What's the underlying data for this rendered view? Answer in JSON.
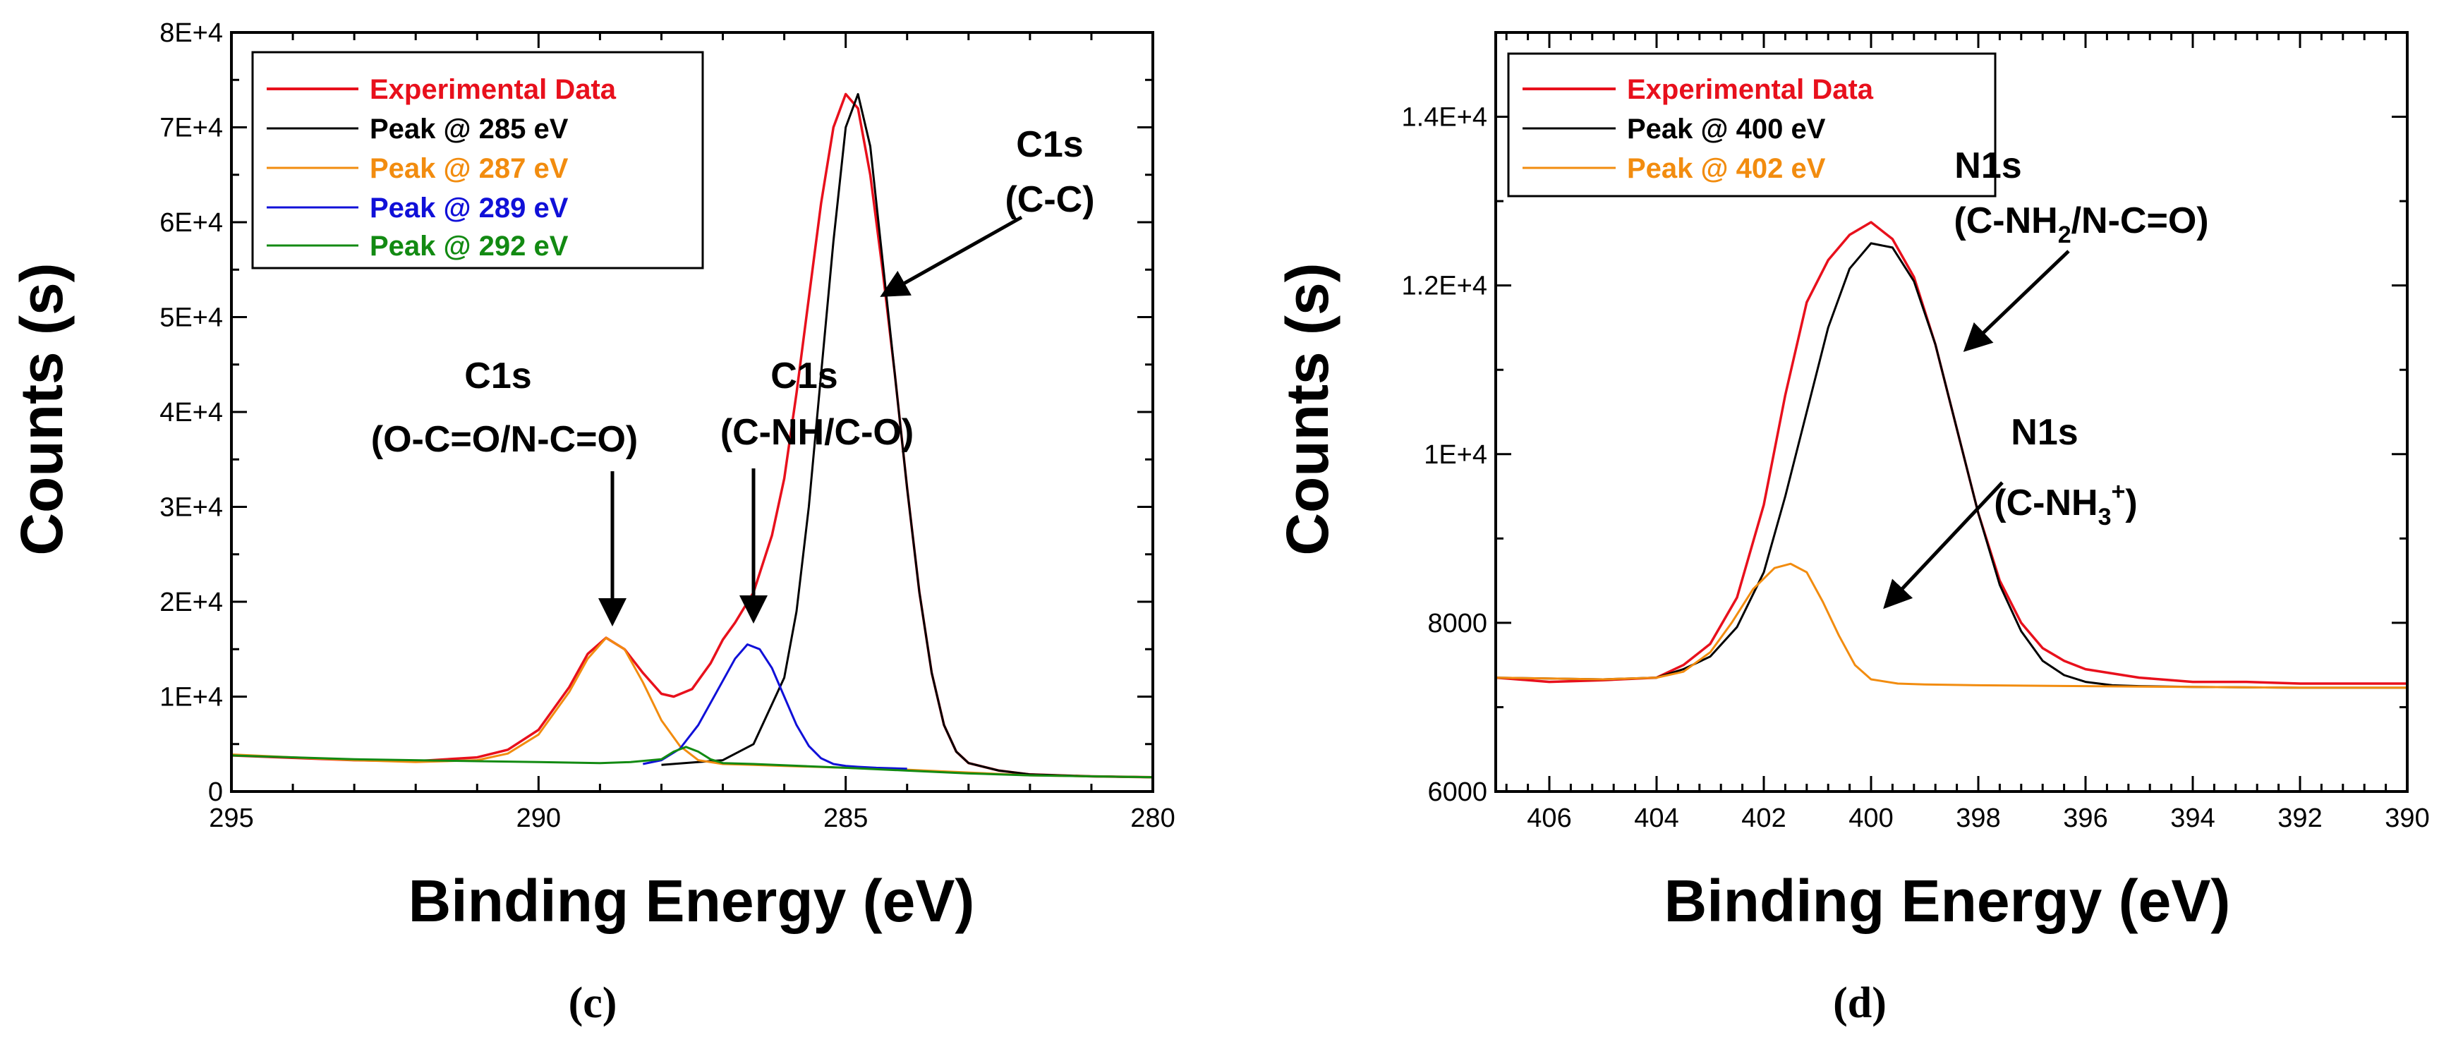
{
  "chart_data": [
    {
      "type": "line",
      "panel_label": "(c)",
      "xlabel": "Binding Energy (eV)",
      "ylabel": "Counts (s)",
      "xlim": [
        295,
        280
      ],
      "ylim": [
        0,
        80000
      ],
      "x_reversed": true,
      "xticks": [
        295,
        290,
        285,
        280
      ],
      "xtick_labels": [
        "295",
        "290",
        "285",
        "280"
      ],
      "yticks": [
        0,
        10000,
        20000,
        30000,
        40000,
        50000,
        60000,
        70000,
        80000
      ],
      "ytick_labels": [
        "0",
        "1E+4",
        "2E+4",
        "3E+4",
        "4E+4",
        "5E+4",
        "6E+4",
        "7E+4",
        "8E+4"
      ],
      "legend": {
        "position": "top-left",
        "entries": [
          {
            "label": "Experimental Data",
            "color": "#e8101c"
          },
          {
            "label": "Peak @ 285 eV",
            "color": "#000000"
          },
          {
            "label": "Peak @ 287 eV",
            "color": "#f28c0f"
          },
          {
            "label": "Peak @ 289 eV",
            "color": "#1010d8"
          },
          {
            "label": "Peak @ 292 eV",
            "color": "#128a12"
          }
        ]
      },
      "series": [
        {
          "name": "Experimental Data",
          "color": "#e8101c",
          "x": [
            295,
            293,
            292,
            291,
            290.5,
            290,
            289.5,
            289.2,
            288.9,
            288.6,
            288.3,
            288.0,
            287.8,
            287.5,
            287.2,
            287.0,
            286.8,
            286.5,
            286.2,
            286.0,
            285.8,
            285.6,
            285.4,
            285.2,
            285.0,
            284.8,
            284.6,
            284.4,
            284.2,
            284.0,
            283.8,
            283.6,
            283.4,
            283.2,
            283.0,
            282.5,
            282.0,
            281.0,
            280.0
          ],
          "y": [
            3800,
            3300,
            3200,
            3600,
            4400,
            6500,
            11000,
            14500,
            16200,
            15000,
            12500,
            10300,
            10000,
            10800,
            13500,
            16000,
            17800,
            21000,
            27000,
            33000,
            42000,
            52000,
            62000,
            70000,
            73500,
            72000,
            65000,
            55000,
            44000,
            32000,
            21000,
            12500,
            7000,
            4200,
            3000,
            2200,
            1800,
            1600,
            1500
          ]
        },
        {
          "name": "Peak @ 285 eV",
          "color": "#000000",
          "x": [
            288.0,
            287.0,
            286.5,
            286.0,
            285.8,
            285.6,
            285.4,
            285.2,
            285.0,
            284.8,
            284.6,
            284.4,
            284.2,
            284.0,
            283.8,
            283.6,
            283.4,
            283.2,
            283.0,
            282.5,
            282.0,
            281.0,
            280.0
          ],
          "y": [
            2800,
            3300,
            5000,
            12000,
            19000,
            30000,
            44000,
            58000,
            70000,
            73500,
            68000,
            56000,
            44000,
            32000,
            21000,
            12500,
            7000,
            4200,
            3000,
            2200,
            1800,
            1600,
            1500
          ]
        },
        {
          "name": "Peak @ 287 eV",
          "color": "#f28c0f",
          "x": [
            295,
            293,
            292,
            291,
            290.5,
            290,
            289.5,
            289.2,
            288.9,
            288.6,
            288.3,
            288.0,
            287.7,
            287.4,
            287.0,
            286.5,
            286.0,
            285.0,
            284.0,
            283.0,
            282.0,
            281.0,
            280.0
          ],
          "y": [
            3900,
            3300,
            3100,
            3300,
            4000,
            6000,
            10500,
            14000,
            16200,
            15000,
            11500,
            7500,
            4800,
            3300,
            2900,
            2800,
            2700,
            2500,
            2300,
            2000,
            1700,
            1600,
            1500
          ]
        },
        {
          "name": "Peak @ 289 eV",
          "color": "#1010d8",
          "x": [
            288.3,
            288.0,
            287.7,
            287.4,
            287.1,
            286.8,
            286.6,
            286.4,
            286.2,
            286.0,
            285.8,
            285.6,
            285.4,
            285.2,
            285.0,
            284.8,
            284.5,
            284.0
          ],
          "y": [
            2900,
            3300,
            4500,
            7000,
            10500,
            14000,
            15500,
            15000,
            13000,
            10000,
            7000,
            4800,
            3500,
            2900,
            2700,
            2600,
            2500,
            2400
          ]
        },
        {
          "name": "Peak @ 292 eV",
          "color": "#128a12",
          "x": [
            295,
            293,
            291,
            290,
            289,
            288.5,
            288.0,
            287.8,
            287.6,
            287.4,
            287.2,
            287.0,
            286.5,
            285.0,
            284.0,
            283.0,
            282.0,
            281.0,
            280.0
          ],
          "y": [
            3800,
            3400,
            3200,
            3100,
            3000,
            3100,
            3400,
            4200,
            4700,
            4200,
            3400,
            3000,
            2900,
            2500,
            2200,
            1900,
            1700,
            1600,
            1500
          ]
        }
      ],
      "annotations": [
        {
          "lines": [
            "C1s",
            "(C-C)"
          ]
        },
        {
          "lines": [
            "C1s",
            "(O-C=O/N-C=O)"
          ]
        },
        {
          "lines": [
            "C1s",
            "(C-NH/C-O)"
          ]
        }
      ]
    },
    {
      "type": "line",
      "panel_label": "(d)",
      "xlabel": "Binding Energy (eV)",
      "ylabel": "Counts (s)",
      "xlim": [
        407,
        390
      ],
      "ylim": [
        6000,
        15000
      ],
      "x_reversed": true,
      "xticks": [
        406,
        404,
        402,
        400,
        398,
        396,
        394,
        392,
        390
      ],
      "xtick_labels": [
        "406",
        "404",
        "402",
        "400",
        "398",
        "396",
        "394",
        "392",
        "390"
      ],
      "yticks": [
        6000,
        8000,
        10000,
        12000,
        14000
      ],
      "ytick_labels": [
        "6000",
        "8000",
        "1E+4",
        "1.2E+4",
        "1.4E+4"
      ],
      "legend": {
        "position": "top-left",
        "entries": [
          {
            "label": "Experimental Data",
            "color": "#e8101c"
          },
          {
            "label": "Peak @ 400 eV",
            "color": "#000000"
          },
          {
            "label": "Peak @ 402 eV",
            "color": "#f28c0f"
          }
        ]
      },
      "series": [
        {
          "name": "Experimental Data",
          "color": "#e8101c",
          "x": [
            407,
            406,
            405,
            404,
            403.5,
            403,
            402.5,
            402,
            401.6,
            401.2,
            400.8,
            400.4,
            400.0,
            399.6,
            399.2,
            398.8,
            398.4,
            398.0,
            397.6,
            397.2,
            396.8,
            396.4,
            396.0,
            395.5,
            395,
            394,
            393,
            392,
            391,
            390
          ],
          "y": [
            7350,
            7300,
            7320,
            7350,
            7500,
            7750,
            8300,
            9400,
            10700,
            11800,
            12300,
            12600,
            12750,
            12550,
            12100,
            11300,
            10300,
            9300,
            8500,
            8000,
            7700,
            7550,
            7450,
            7400,
            7350,
            7300,
            7300,
            7280,
            7280,
            7280
          ]
        },
        {
          "name": "Peak @ 400 eV",
          "color": "#000000",
          "x": [
            407,
            405,
            404,
            403.5,
            403,
            402.5,
            402,
            401.6,
            401.2,
            400.8,
            400.4,
            400.0,
            399.6,
            399.2,
            398.8,
            398.4,
            398.0,
            397.6,
            397.2,
            396.8,
            396.4,
            396.0,
            395.5,
            395,
            394,
            392,
            390
          ],
          "y": [
            7350,
            7330,
            7350,
            7450,
            7600,
            7950,
            8600,
            9500,
            10500,
            11500,
            12200,
            12500,
            12450,
            12050,
            11300,
            10300,
            9300,
            8450,
            7900,
            7550,
            7380,
            7300,
            7260,
            7250,
            7240,
            7230,
            7230
          ]
        },
        {
          "name": "Peak @ 402 eV",
          "color": "#f28c0f",
          "x": [
            407,
            405,
            404,
            403.5,
            403,
            402.6,
            402.2,
            401.8,
            401.5,
            401.2,
            400.9,
            400.6,
            400.3,
            400.0,
            399.5,
            399,
            398,
            396,
            394,
            392,
            390
          ],
          "y": [
            7350,
            7330,
            7350,
            7420,
            7650,
            8000,
            8400,
            8650,
            8700,
            8600,
            8250,
            7850,
            7500,
            7330,
            7280,
            7270,
            7260,
            7250,
            7240,
            7230,
            7230
          ]
        }
      ],
      "annotations": [
        {
          "lines": [
            "N1s",
            "(C-NH2/N-C=O)"
          ]
        },
        {
          "lines": [
            "N1s",
            "(C-NH3+)"
          ]
        }
      ]
    }
  ]
}
